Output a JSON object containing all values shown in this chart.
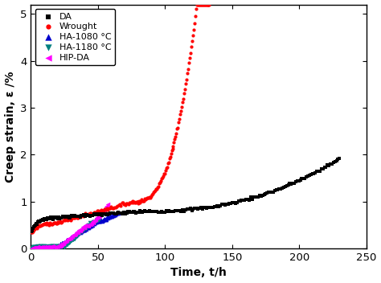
{
  "title": "",
  "xlabel": "Time, t/h",
  "ylabel": "Creep strain, ε /%",
  "xlim": [
    0,
    250
  ],
  "ylim": [
    0,
    5.2
  ],
  "xticks": [
    0,
    50,
    100,
    150,
    200,
    250
  ],
  "yticks": [
    0,
    1,
    2,
    3,
    4,
    5
  ],
  "legend": [
    {
      "label": "DA",
      "color": "#000000",
      "marker": "s"
    },
    {
      "label": "Wrought",
      "color": "#ff0000",
      "marker": "o"
    },
    {
      "label": "HA-1080 °C",
      "color": "#0000cc",
      "marker": "^"
    },
    {
      "label": "HA-1180 °C",
      "color": "#008080",
      "marker": "v"
    },
    {
      "label": "HIP-DA",
      "color": "#ff00ff",
      "marker": "<"
    }
  ],
  "background_color": "#ffffff"
}
